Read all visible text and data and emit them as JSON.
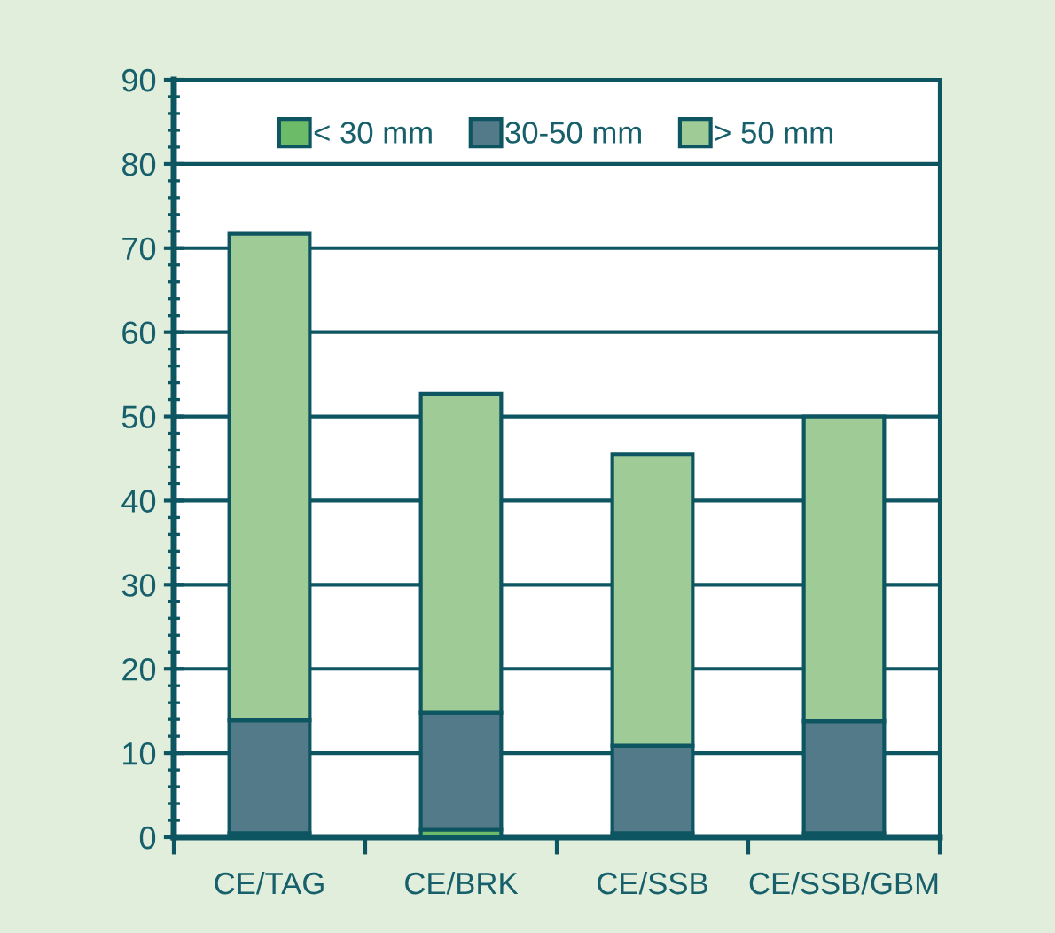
{
  "chart_data": {
    "type": "bar",
    "stacked": true,
    "categories": [
      "CE/TAG",
      "CE/BRK",
      "CE/SSB",
      "CE/SSB/GBM"
    ],
    "series": [
      {
        "name": "< 30 mm",
        "color": "#6cbb68",
        "values": [
          0.5,
          0.9,
          0.5,
          0.5
        ]
      },
      {
        "name": "30-50 mm",
        "color": "#527a88",
        "values": [
          13.4,
          13.9,
          10.4,
          13.3
        ]
      },
      {
        "name": "> 50 mm",
        "color": "#9ecb96",
        "values": [
          57.8,
          37.9,
          34.6,
          36.2
        ]
      }
    ],
    "ylim": [
      0,
      90
    ],
    "yticks": [
      0,
      10,
      20,
      30,
      40,
      50,
      60,
      70,
      80,
      90
    ],
    "grid": "y",
    "legend": "top"
  }
}
